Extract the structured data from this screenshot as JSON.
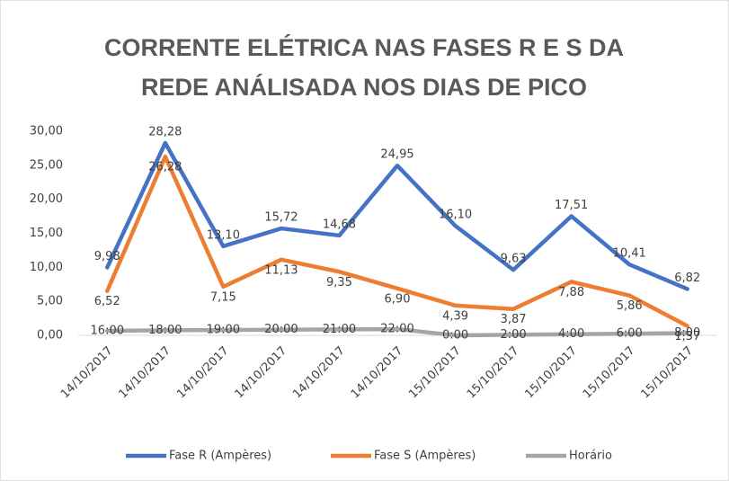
{
  "chart_data": {
    "type": "line",
    "title": [
      "CORRENTE ELÉTRICA NAS FASES R E S DA",
      "REDE ANÁLISADA NOS DIAS DE PICO"
    ],
    "categories": [
      "14/10/2017",
      "14/10/2017",
      "14/10/2017",
      "14/10/2017",
      "14/10/2017",
      "14/10/2017",
      "15/10/2017",
      "15/10/2017",
      "15/10/2017",
      "15/10/2017",
      "15/10/2017"
    ],
    "series": [
      {
        "name": "Fase R (Ampères)",
        "color": "#4472c4",
        "values": [
          9.98,
          28.28,
          13.1,
          15.72,
          14.68,
          24.95,
          16.1,
          9.63,
          17.51,
          10.41,
          6.82
        ],
        "value_labels": [
          "9,98",
          "28,28",
          "13,10",
          "15,72",
          "14,68",
          "24,95",
          "16,10",
          "9,63",
          "17,51",
          "10,41",
          "6,82"
        ]
      },
      {
        "name": "Fase S (Ampères)",
        "color": "#ed7d31",
        "values": [
          6.52,
          26.28,
          7.15,
          11.13,
          9.35,
          6.9,
          4.39,
          3.87,
          7.88,
          5.86,
          1.37
        ],
        "value_labels": [
          "6,52",
          "26,28",
          "7,15",
          "11,13",
          "9,35",
          "6,90",
          "4,39",
          "3,87",
          "7,88",
          "5,86",
          "1,37"
        ]
      },
      {
        "name": "Horário",
        "color": "#a5a5a5",
        "values": [
          0.6667,
          0.75,
          0.7917,
          0.8333,
          0.875,
          0.9167,
          0,
          0.0833,
          0.1667,
          0.25,
          0.3333
        ],
        "value_labels": [
          "16:00",
          "18:00",
          "19:00",
          "20:00",
          "21:00",
          "22:00",
          "0:00",
          "2:00",
          "4:00",
          "6:00",
          "8:00"
        ]
      }
    ],
    "ylim": [
      0,
      30
    ],
    "yticks": [
      {
        "value": 0,
        "label": "0,00"
      },
      {
        "value": 5,
        "label": "5,00"
      },
      {
        "value": 10,
        "label": "10,00"
      },
      {
        "value": 15,
        "label": "15,00"
      },
      {
        "value": 20,
        "label": "20,00"
      },
      {
        "value": 25,
        "label": "25,00"
      },
      {
        "value": 30,
        "label": "30,00"
      }
    ],
    "grid": false,
    "legend": "bottom"
  }
}
